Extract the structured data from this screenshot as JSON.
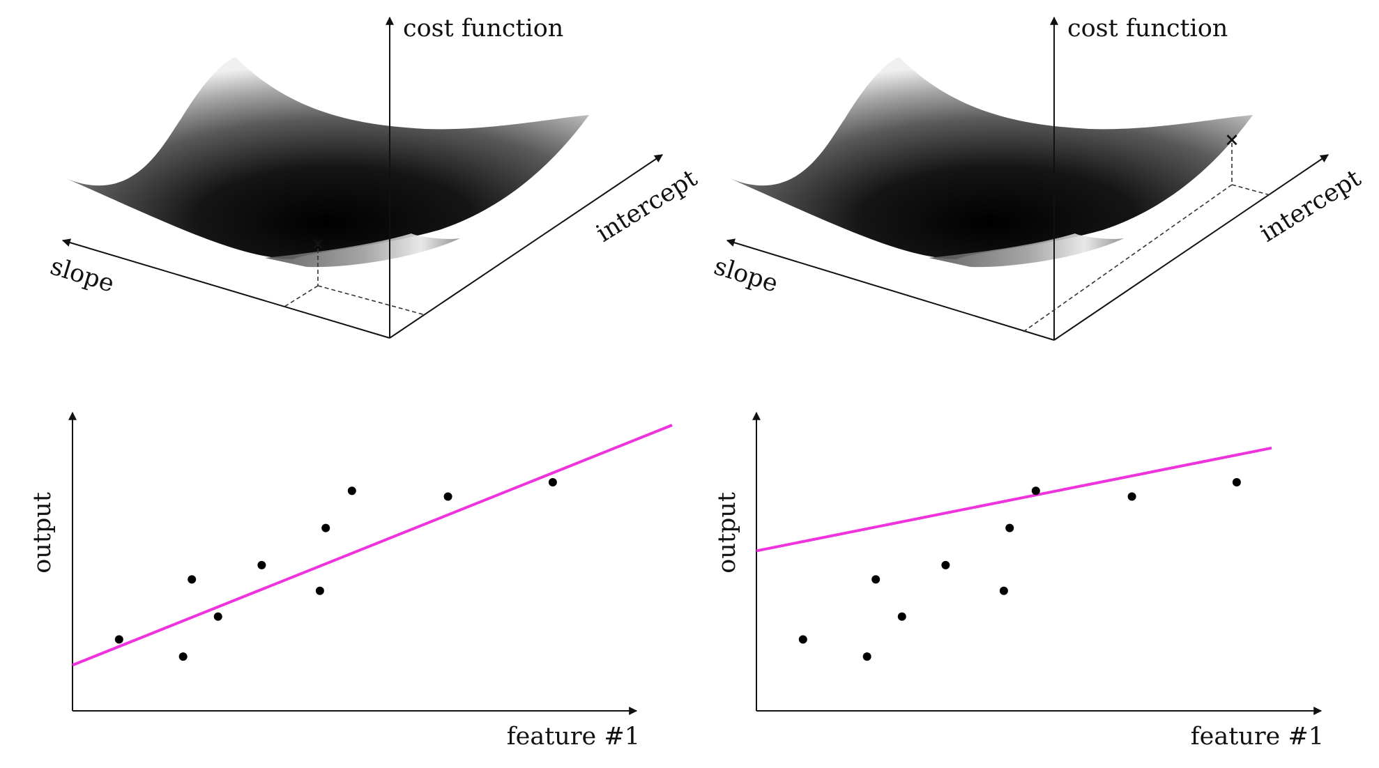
{
  "colors": {
    "fit_line": "#ee33dd",
    "minimum_marker": "#e8323c",
    "axis": "#111111",
    "points": "#000000"
  },
  "panels": [
    {
      "id": "optimal",
      "surface": {
        "z_axis_label": "cost function",
        "slope_axis_label": "slope",
        "intercept_axis_label": "intercept",
        "marker_symbol": "×",
        "marker_position": "near minimum"
      },
      "plot": {
        "x_axis_label": "feature #1",
        "y_axis_label": "output",
        "line": {
          "from": [
            0,
            0.16
          ],
          "to": [
            1.03,
            1.0
          ]
        },
        "points": [
          [
            0.08,
            0.25
          ],
          [
            0.19,
            0.19
          ],
          [
            0.205,
            0.46
          ],
          [
            0.25,
            0.33
          ],
          [
            0.325,
            0.51
          ],
          [
            0.425,
            0.42
          ],
          [
            0.435,
            0.64
          ],
          [
            0.48,
            0.77
          ],
          [
            0.645,
            0.75
          ],
          [
            0.825,
            0.8
          ]
        ]
      }
    },
    {
      "id": "suboptimal",
      "surface": {
        "z_axis_label": "cost function",
        "slope_axis_label": "slope",
        "intercept_axis_label": "intercept",
        "marker_symbol": "×",
        "marker_position": "far from minimum"
      },
      "plot": {
        "x_axis_label": "feature #1",
        "y_axis_label": "output",
        "line": {
          "from": [
            0,
            0.56
          ],
          "to": [
            0.885,
            0.92
          ]
        },
        "points": [
          [
            0.08,
            0.25
          ],
          [
            0.19,
            0.19
          ],
          [
            0.205,
            0.46
          ],
          [
            0.25,
            0.33
          ],
          [
            0.325,
            0.51
          ],
          [
            0.425,
            0.42
          ],
          [
            0.435,
            0.64
          ],
          [
            0.48,
            0.77
          ],
          [
            0.645,
            0.75
          ],
          [
            0.825,
            0.8
          ]
        ]
      }
    }
  ]
}
